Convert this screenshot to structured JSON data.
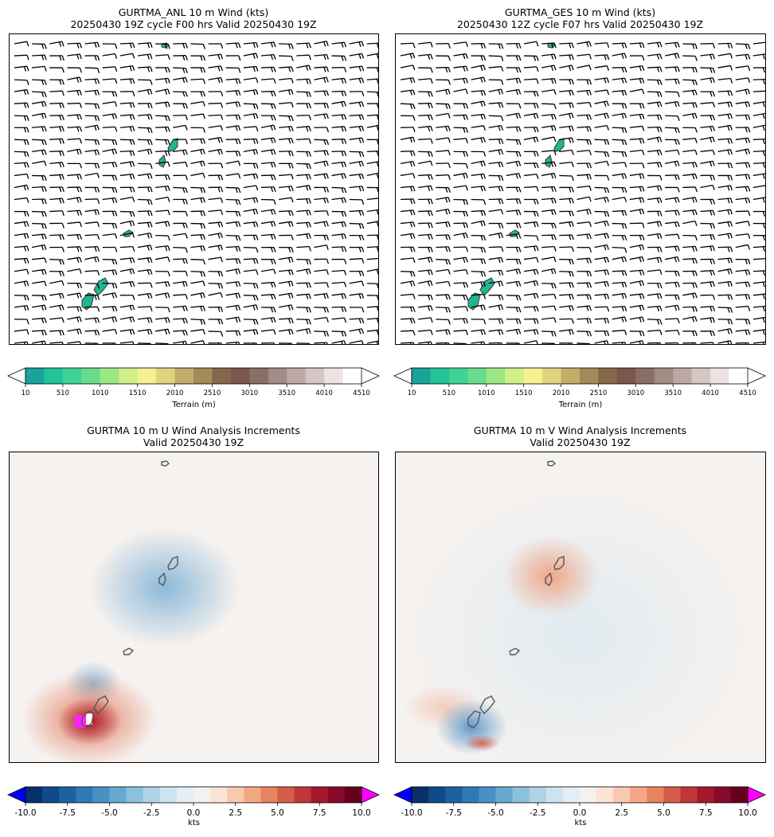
{
  "panels": [
    {
      "title_line1": "GURTMA_ANL 10 m Wind (kts)",
      "title_line2": "20250430 19Z cycle F00 hrs Valid 20250430 19Z"
    },
    {
      "title_line1": "GURTMA_GES 10 m Wind (kts)",
      "title_line2": "20250430 12Z cycle F07 hrs Valid 20250430 19Z"
    },
    {
      "title_line1": "GURTMA 10 m U Wind Analysis Increments",
      "title_line2": "Valid 20250430 19Z"
    },
    {
      "title_line1": "GURTMA 10 m V Wind Analysis Increments",
      "title_line2": "Valid 20250430 19Z"
    }
  ],
  "terrain_colorbar": {
    "label": "Terrain (m)",
    "ticks": [
      "10",
      "510",
      "1010",
      "1510",
      "2010",
      "2510",
      "3010",
      "3510",
      "4010",
      "4510"
    ],
    "colors": [
      "#1aa39a",
      "#22c49a",
      "#40d294",
      "#66dc8c",
      "#9be887",
      "#d1f08a",
      "#f5f090",
      "#e0d27f",
      "#c4ad6b",
      "#a48a58",
      "#86674a",
      "#7b564c",
      "#8c6e68",
      "#a38b86",
      "#bba8a4",
      "#d3c6c3",
      "#ebe4e2",
      "#ffffff"
    ]
  },
  "increment_colorbar": {
    "label": "kts",
    "ticks": [
      "-10.0",
      "-7.5",
      "-5.0",
      "-2.5",
      "0.0",
      "2.5",
      "5.0",
      "7.5",
      "10.0"
    ],
    "under_color": "#0000ff",
    "over_color": "#ff00ff",
    "colors": [
      "#08306b",
      "#0f4a8a",
      "#1c62a2",
      "#2f7ab6",
      "#4891c4",
      "#67a9cf",
      "#8cc0dd",
      "#aed3e7",
      "#cde3ef",
      "#e4eef4",
      "#f4f1ef",
      "#fbe3d5",
      "#f9c9af",
      "#f4a785",
      "#e7835f",
      "#d55c48",
      "#bf3736",
      "#a5172c",
      "#860a27",
      "#67001f"
    ]
  },
  "chart_data": [
    {
      "type": "barbs",
      "title": "GURTMA_ANL 10 m Wind (kts)",
      "subtitle": "20250430 19Z cycle F00 hrs Valid 20250430 19Z",
      "prevailing_wind": "easterly, mostly 5-15 kts",
      "colorbar_label": "Terrain (m)",
      "colorbar_range": [
        10,
        4510
      ]
    },
    {
      "type": "barbs",
      "title": "GURTMA_GES 10 m Wind (kts)",
      "subtitle": "20250430 12Z cycle F07 hrs Valid 20250430 19Z",
      "prevailing_wind": "easterly, mostly 5-15 kts",
      "colorbar_label": "Terrain (m)",
      "colorbar_range": [
        10,
        4510
      ]
    },
    {
      "type": "heatmap",
      "title": "GURTMA 10 m U Wind Analysis Increments",
      "subtitle": "Valid 20250430 19Z",
      "colorbar_label": "kts",
      "colorbar_range": [
        -10,
        10
      ],
      "features": [
        {
          "name": "negative center",
          "value": -2
        },
        {
          "name": "positive maximum near southern island",
          "value": 10
        }
      ]
    },
    {
      "type": "heatmap",
      "title": "GURTMA 10 m V Wind Analysis Increments",
      "subtitle": "Valid 20250430 19Z",
      "colorbar_label": "kts",
      "colorbar_range": [
        -10,
        10
      ],
      "features": [
        {
          "name": "positive center",
          "value": 2
        },
        {
          "name": "negative near southern island",
          "value": -5
        }
      ]
    }
  ]
}
